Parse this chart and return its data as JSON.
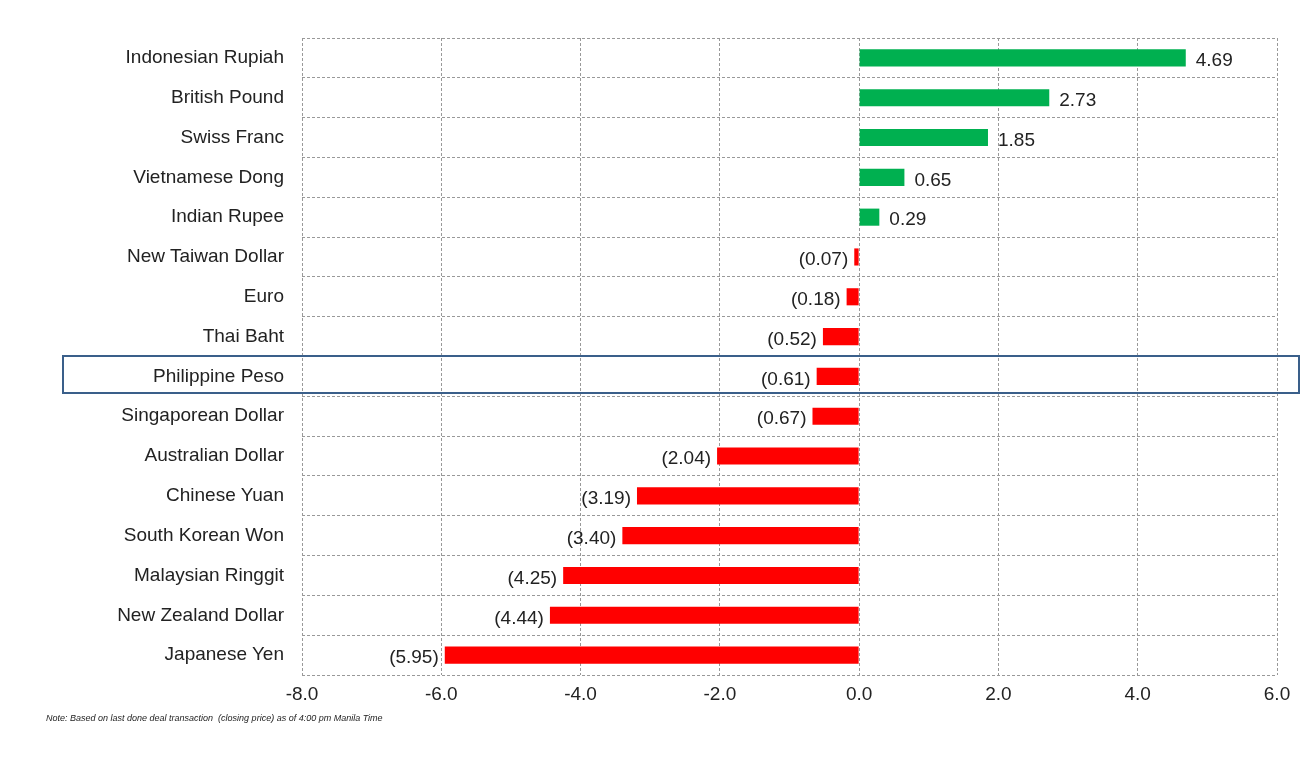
{
  "chart_data": {
    "type": "bar",
    "orientation": "horizontal",
    "categories": [
      "Indonesian Rupiah",
      "British Pound",
      "Swiss Franc",
      "Vietnamese Dong",
      "Indian Rupee",
      "New Taiwan Dollar",
      "Euro",
      "Thai Baht",
      "Philippine Peso",
      "Singaporean Dollar",
      "Australian Dollar",
      "Chinese Yuan",
      "South Korean Won",
      "Malaysian Ringgit",
      "New Zealand Dollar",
      "Japanese Yen"
    ],
    "values": [
      4.69,
      2.73,
      1.85,
      0.65,
      0.29,
      -0.07,
      -0.18,
      -0.52,
      -0.61,
      -0.67,
      -2.04,
      -3.19,
      -3.4,
      -4.25,
      -4.44,
      -5.95
    ],
    "value_labels": [
      "4.69",
      "2.73",
      "1.85",
      "0.65",
      "0.29",
      "(0.07)",
      "(0.18)",
      "(0.52)",
      "(0.61)",
      "(0.67)",
      "(2.04)",
      "(3.19)",
      "(3.40)",
      "(4.25)",
      "(4.44)",
      "(5.95)"
    ],
    "colors": [
      "#00b050",
      "#00b050",
      "#00b050",
      "#00b050",
      "#00b050",
      "#ff0000",
      "#ff0000",
      "#ff0000",
      "#ff0000",
      "#ff0000",
      "#ff0000",
      "#ff0000",
      "#ff0000",
      "#ff0000",
      "#ff0000",
      "#ff0000"
    ],
    "xlim": [
      -8,
      6
    ],
    "xticks": [
      {
        "value": -8,
        "label": "-8.0"
      },
      {
        "value": -6,
        "label": "-6.0"
      },
      {
        "value": -4,
        "label": "-4.0"
      },
      {
        "value": -2,
        "label": "-2.0"
      },
      {
        "value": 0,
        "label": "0.0"
      },
      {
        "value": 2,
        "label": "2.0"
      },
      {
        "value": 4,
        "label": "4.0"
      },
      {
        "value": 6,
        "label": "6.0"
      }
    ],
    "grid": true,
    "legend": false,
    "annotations": [
      "Note: Based on last done deal transaction  (closing price) as of 4:00 pm Manila Time"
    ]
  }
}
